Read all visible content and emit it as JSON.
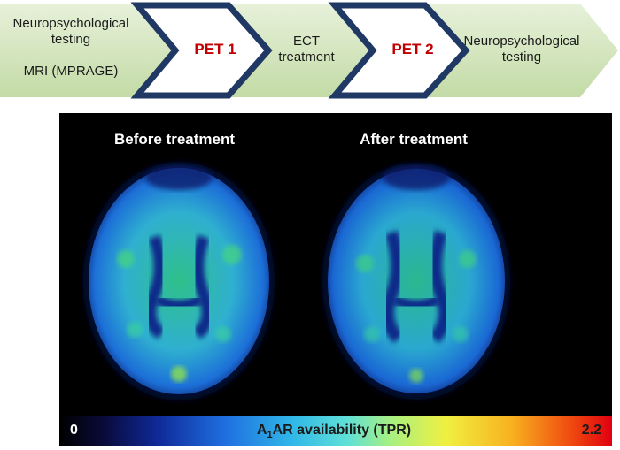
{
  "flow": {
    "step1_line1": "Neuropsychological",
    "step1_line2": "testing",
    "step1_line3": "MRI (MPRAGE)",
    "pet1": "PET 1",
    "ect_line1": "ECT",
    "ect_line2": "treatment",
    "pet2": "PET 2",
    "final_line1": "Neuropsychological",
    "final_line2": "testing"
  },
  "scans": {
    "before_title": "Before treatment",
    "after_title": "After treatment"
  },
  "colorbar": {
    "min_label": "0",
    "label_prefix": "A",
    "label_subscript": "1",
    "label_rest": "AR availability (TPR)",
    "max_label": "2.2"
  },
  "colors": {
    "arrow_fill": "#cfe3b4",
    "chevron_border": "#1f3864",
    "pet_text": "#c00000",
    "scan_background": "#000000"
  }
}
